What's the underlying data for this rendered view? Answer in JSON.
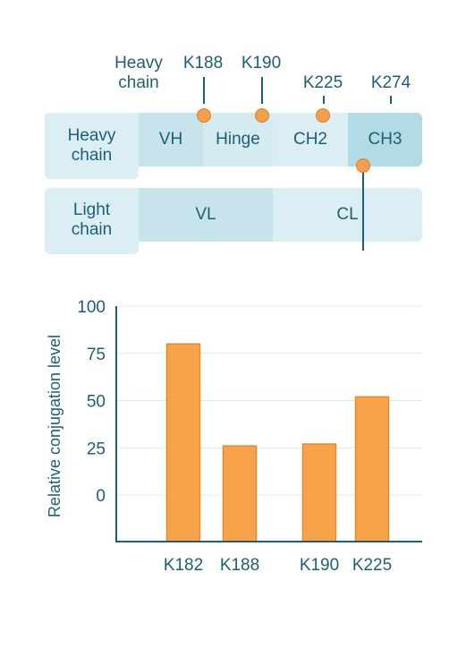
{
  "diagram": {
    "heavy_chain_label": "Heavy\nchain",
    "light_chain_label": "Light\nchain",
    "heavy_row_label": "Heavy\nchain",
    "heavy_domains": [
      "VH",
      "Hinge",
      "CH2",
      "CH3"
    ],
    "light_domains": [
      "VL",
      "CL"
    ],
    "sites": [
      "K188",
      "K190",
      "K225",
      "K274"
    ],
    "colors": {
      "text": "#1e5f74",
      "domain_light": "#dbeef3",
      "domain_mid": "#c7e4ec",
      "domain_dark": "#b3dbe6",
      "site_dot": "#f49f4b"
    }
  },
  "chart_data": {
    "type": "bar",
    "categories": [
      "K182",
      "K188",
      "K190",
      "K225"
    ],
    "values": [
      80,
      26,
      27,
      52
    ],
    "ylabel": "Relative conjugation level",
    "yticks": [
      0,
      25,
      50,
      75,
      100
    ],
    "ylim": [
      -25,
      100
    ],
    "grid": true,
    "bar_color": "#f8a24a",
    "bar_edge": "#e68a2e"
  }
}
